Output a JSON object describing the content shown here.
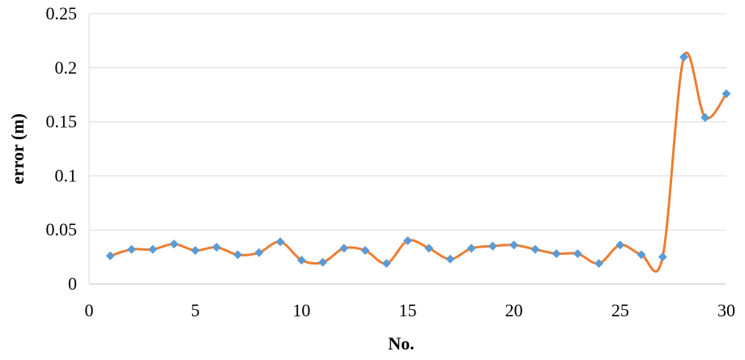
{
  "chart_data": {
    "type": "scatter",
    "title": "",
    "xlabel": "No.",
    "ylabel": "error (m)",
    "xlim": [
      0,
      30
    ],
    "ylim": [
      0,
      0.25
    ],
    "x_ticks": [
      0,
      5,
      10,
      15,
      20,
      25,
      30
    ],
    "x_tick_labels": [
      "0",
      "5",
      "10",
      "15",
      "20",
      "25",
      "30"
    ],
    "y_ticks": [
      0,
      0.05,
      0.1,
      0.15,
      0.2,
      0.25
    ],
    "y_tick_labels": [
      "0",
      "0.05",
      "0.1",
      "0.15",
      "0.2",
      "0.25"
    ],
    "grid": "horizontal",
    "legend": "none",
    "line_style": "smooth",
    "series": [
      {
        "x": [
          1,
          2,
          3,
          4,
          5,
          6,
          7,
          8,
          9,
          10,
          11,
          12,
          13,
          14,
          15,
          16,
          17,
          18,
          19,
          20,
          21,
          22,
          23,
          24,
          25,
          26,
          27,
          28,
          29,
          30
        ],
        "y": [
          0.026,
          0.032,
          0.032,
          0.037,
          0.031,
          0.034,
          0.027,
          0.029,
          0.039,
          0.022,
          0.02,
          0.033,
          0.031,
          0.019,
          0.04,
          0.033,
          0.023,
          0.033,
          0.035,
          0.036,
          0.032,
          0.028,
          0.028,
          0.019,
          0.036,
          0.027,
          0.025,
          0.21,
          0.154,
          0.176
        ],
        "line_color": "#ED7D31",
        "marker_color": "#5B9BD5",
        "marker": "diamond"
      }
    ]
  }
}
